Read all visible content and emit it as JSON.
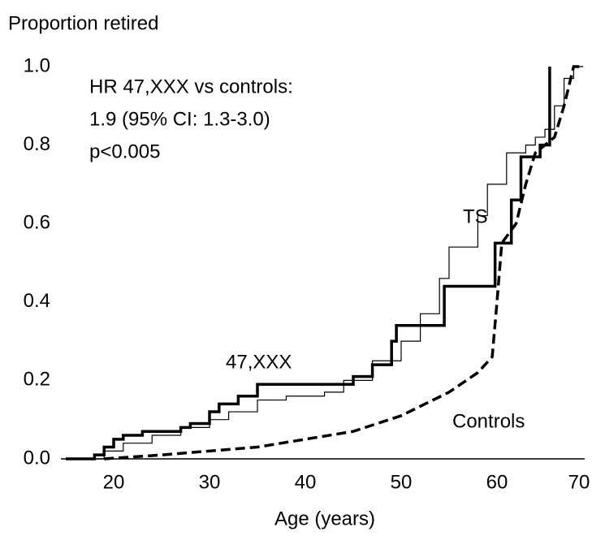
{
  "chart_data": {
    "type": "line",
    "y_label": "Proportion retired",
    "x_label": "Age (years)",
    "annotations": [
      "HR 47,XXX vs controls:",
      "1.9 (95% CI: 1.3-3.0)",
      "p<0.005"
    ],
    "xlim": [
      15,
      70
    ],
    "ylim": [
      0,
      1
    ],
    "xticks": [
      20,
      30,
      40,
      50,
      60,
      70
    ],
    "yticks": [
      {
        "value": 0,
        "label": "0.0"
      },
      0.2,
      0.4,
      0.6,
      0.8,
      {
        "value": 1,
        "label": "1.0"
      }
    ],
    "grid": false,
    "series": [
      {
        "name": "47,XXX",
        "color": "#000000",
        "step": true,
        "dashed": false,
        "line_width": 3.5,
        "x": [
          15,
          18,
          19,
          20,
          21,
          23,
          27,
          28,
          30,
          31,
          33,
          35,
          45,
          47,
          49,
          49.5,
          54.5,
          59.8,
          61.5,
          62.5,
          64.5,
          65.5
        ],
        "values": [
          0,
          0.01,
          0.03,
          0.05,
          0.06,
          0.07,
          0.08,
          0.09,
          0.12,
          0.14,
          0.16,
          0.19,
          0.21,
          0.24,
          0.3,
          0.34,
          0.44,
          0.55,
          0.66,
          0.77,
          0.8,
          1.0
        ]
      },
      {
        "name": "TS",
        "color": "#000000",
        "step": true,
        "dashed": false,
        "line_width": 1.2,
        "x": [
          17,
          19,
          21,
          24,
          27,
          30,
          32,
          35,
          38,
          42,
          44,
          47,
          50,
          52,
          54,
          55,
          57,
          58,
          59,
          61,
          63,
          64,
          65,
          66,
          67,
          68,
          69
        ],
        "values": [
          0,
          0.02,
          0.04,
          0.06,
          0.08,
          0.1,
          0.12,
          0.15,
          0.16,
          0.17,
          0.2,
          0.25,
          0.3,
          0.37,
          0.46,
          0.54,
          0.54,
          0.62,
          0.7,
          0.78,
          0.8,
          0.82,
          0.84,
          0.9,
          0.97,
          1.0,
          1.0
        ]
      },
      {
        "name": "Controls",
        "color": "#000000",
        "step": false,
        "dashed": true,
        "line_width": 3.5,
        "x": [
          19,
          25,
          30,
          35,
          40,
          45,
          50,
          55,
          58,
          59.5,
          60,
          60.5,
          62,
          63,
          64,
          65,
          66,
          67,
          68,
          69
        ],
        "values": [
          0,
          0.01,
          0.02,
          0.03,
          0.05,
          0.07,
          0.11,
          0.17,
          0.22,
          0.26,
          0.4,
          0.55,
          0.6,
          0.7,
          0.78,
          0.8,
          0.82,
          0.9,
          1.0,
          1.0
        ]
      }
    ]
  }
}
